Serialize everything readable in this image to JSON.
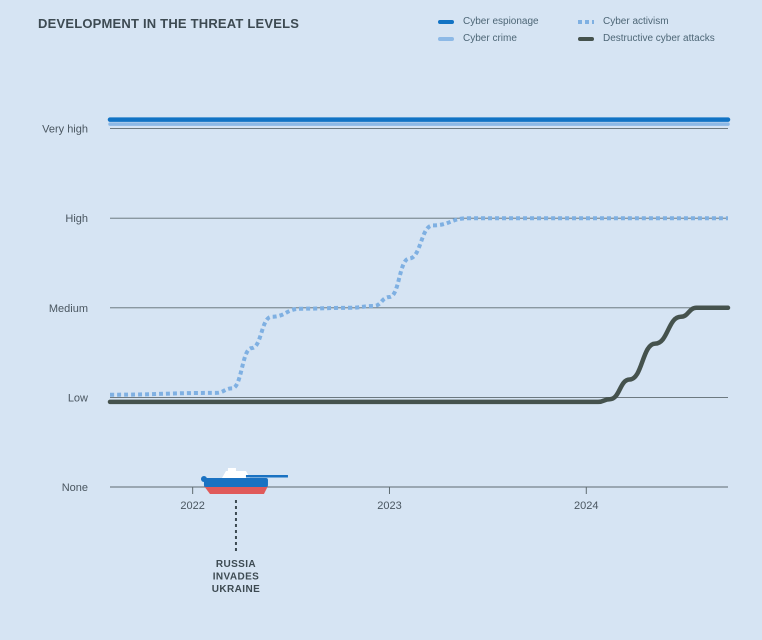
{
  "chart_data": {
    "type": "line",
    "title": "DEVELOPMENT IN THE THREAT LEVELS",
    "y_levels": [
      "None",
      "Low",
      "Medium",
      "High",
      "Very high"
    ],
    "ylim": [
      0,
      4.4
    ],
    "xlim": [
      2021.58,
      2024.72
    ],
    "x_ticks": [
      {
        "value": 2022,
        "label": "2022"
      },
      {
        "value": 2023,
        "label": "2023"
      },
      {
        "value": 2024,
        "label": "2024"
      }
    ],
    "series": [
      {
        "name": "Cyber espionage",
        "color": "#1273c4",
        "style": "solid",
        "x": [
          2021.58,
          2024.72
        ],
        "y": [
          4.1,
          4.1
        ]
      },
      {
        "name": "Cyber crime",
        "color": "#8db9e6",
        "style": "solid",
        "x": [
          2021.58,
          2024.72
        ],
        "y": [
          4.05,
          4.05
        ]
      },
      {
        "name": "Cyber activism",
        "color": "#7fb0e2",
        "style": "dotted",
        "x": [
          2021.58,
          2022.12,
          2022.2,
          2022.3,
          2022.4,
          2022.55,
          2022.8,
          2022.92,
          2023.0,
          2023.1,
          2023.22,
          2023.4,
          2024.72
        ],
        "y": [
          1.03,
          1.05,
          1.1,
          1.55,
          1.9,
          1.99,
          2.0,
          2.02,
          2.12,
          2.55,
          2.92,
          3.0,
          3.0
        ]
      },
      {
        "name": "Destructive cyber attacks",
        "color": "#45524d",
        "style": "solid",
        "x": [
          2021.58,
          2024.06,
          2024.12,
          2024.22,
          2024.35,
          2024.48,
          2024.56,
          2024.72
        ],
        "y": [
          0.95,
          0.95,
          0.98,
          1.2,
          1.6,
          1.9,
          2.0,
          2.0
        ]
      }
    ],
    "annotations": [
      {
        "x": 2022.22,
        "lines": [
          "RUSSIA",
          "INVADES",
          "UKRAINE"
        ],
        "icon": "tank-icon"
      }
    ],
    "legend": [
      {
        "name": "Cyber espionage",
        "color": "#1273c4",
        "style": "solid"
      },
      {
        "name": "Cyber activism",
        "color": "#7fb0e2",
        "style": "dotted"
      },
      {
        "name": "Cyber crime",
        "color": "#8db9e6",
        "style": "solid"
      },
      {
        "name": "Destructive cyber attacks",
        "color": "#45524d",
        "style": "solid"
      }
    ],
    "legend_position": "top-right"
  }
}
